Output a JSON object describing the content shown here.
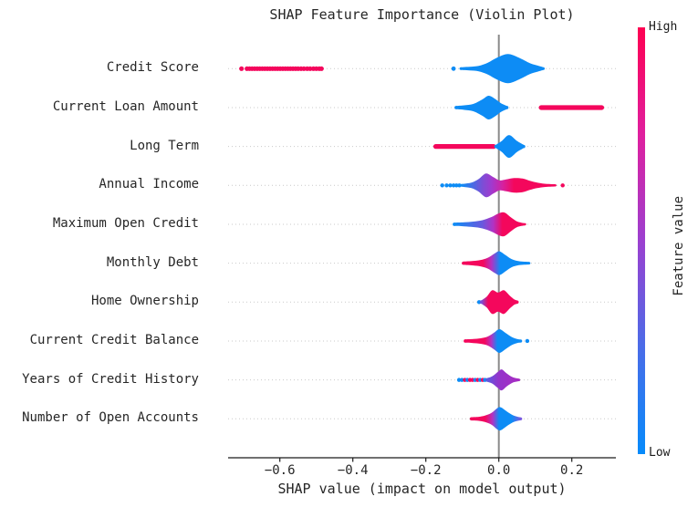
{
  "title": "SHAP Feature Importance (Violin Plot)",
  "xlabel": "SHAP value (impact on model output)",
  "colorbar": {
    "label": "Feature value",
    "high": "High",
    "low": "Low",
    "stops": [
      [
        0,
        "#fe0051"
      ],
      [
        0.25,
        "#e01f9e"
      ],
      [
        0.5,
        "#9c40d0"
      ],
      [
        0.75,
        "#4a6ce8"
      ],
      [
        1,
        "#068bfb"
      ]
    ]
  },
  "colors": {
    "blue": "#0d8cf5",
    "red": "#f4075c",
    "purple": "#a832c8",
    "zero_line": "#8a8a8a",
    "grid": "#c9c9c9",
    "axis": "#1a1a1a",
    "text": "#262626"
  },
  "axis": {
    "tick_values": [
      -0.6,
      -0.4,
      -0.2,
      0.0,
      0.2
    ],
    "tick_labels": [
      "−0.6",
      "−0.4",
      "−0.2",
      "0.0",
      "0.2"
    ],
    "xmin": -0.742,
    "xmax": 0.321
  },
  "chart_data": {
    "type": "violin",
    "orientation": "horizontal",
    "zero_line": 0.0,
    "features": [
      {
        "label": "Credit Score",
        "elements": [
          {
            "type": "dots",
            "color": "red",
            "r": 2.6,
            "xs": [
              -0.705,
              -0.69,
              -0.683,
              -0.676,
              -0.669,
              -0.662,
              -0.655,
              -0.648,
              -0.641,
              -0.634,
              -0.627,
              -0.62,
              -0.613,
              -0.606,
              -0.599,
              -0.592,
              -0.585,
              -0.578,
              -0.571,
              -0.564,
              -0.557,
              -0.55,
              -0.542,
              -0.534,
              -0.525,
              -0.517,
              -0.508,
              -0.5,
              -0.492,
              -0.486
            ]
          },
          {
            "type": "dots",
            "color": "blue",
            "r": 2.4,
            "xs": [
              -0.124
            ]
          },
          {
            "type": "violin",
            "fill": "blue",
            "profile": [
              [
                -0.104,
                1.5
              ],
              [
                -0.08,
                2
              ],
              [
                -0.055,
                3
              ],
              [
                -0.03,
                6.5
              ],
              [
                -0.005,
                12
              ],
              [
                0.025,
                16
              ],
              [
                0.055,
                12
              ],
              [
                0.085,
                6
              ],
              [
                0.105,
                3.5
              ],
              [
                0.122,
                1.5
              ]
            ]
          }
        ]
      },
      {
        "label": "Current Loan Amount",
        "elements": [
          {
            "type": "violin",
            "fill": "blue",
            "profile": [
              [
                -0.117,
                1.8
              ],
              [
                -0.095,
                2.5
              ],
              [
                -0.07,
                4
              ],
              [
                -0.045,
                9
              ],
              [
                -0.028,
                13
              ],
              [
                -0.01,
                9.5
              ],
              [
                0.005,
                5
              ],
              [
                0.022,
                1.8
              ]
            ]
          },
          {
            "type": "streak",
            "color": "red",
            "halfw": 2.6,
            "x0": 0.116,
            "x1": 0.282
          }
        ]
      },
      {
        "label": "Long Term",
        "elements": [
          {
            "type": "streak",
            "color": "red",
            "halfw": 2.6,
            "x0": -0.173,
            "x1": -0.014
          },
          {
            "type": "violin",
            "fill": "blue",
            "profile": [
              [
                -0.008,
                1.8
              ],
              [
                0.008,
                6
              ],
              [
                0.028,
                12.5
              ],
              [
                0.05,
                6
              ],
              [
                0.068,
                1.8
              ]
            ]
          }
        ]
      },
      {
        "label": "Annual Income",
        "elements": [
          {
            "type": "dots",
            "color": "blue",
            "r": 2.2,
            "xs": [
              -0.155,
              -0.143,
              -0.133,
              -0.124,
              -0.116,
              -0.108
            ]
          },
          {
            "type": "violin",
            "stops": [
              [
                0,
                "blue"
              ],
              [
                0.22,
                "#7a4fd6"
              ],
              [
                0.32,
                "#a13ace"
              ],
              [
                0.44,
                "#d6219f"
              ],
              [
                0.56,
                "red"
              ],
              [
                1,
                "red"
              ]
            ],
            "profile": [
              [
                -0.102,
                1.5
              ],
              [
                -0.075,
                3
              ],
              [
                -0.055,
                7
              ],
              [
                -0.035,
                13
              ],
              [
                -0.015,
                9
              ],
              [
                0.002,
                5.5
              ],
              [
                0.02,
                6.5
              ],
              [
                0.042,
                8
              ],
              [
                0.065,
                7.5
              ],
              [
                0.085,
                5
              ],
              [
                0.105,
                3
              ],
              [
                0.125,
                1.8
              ],
              [
                0.155,
                1.2
              ]
            ]
          },
          {
            "type": "dots",
            "color": "red",
            "r": 2.2,
            "xs": [
              0.175
            ]
          }
        ]
      },
      {
        "label": "Maximum Open Credit",
        "elements": [
          {
            "type": "violin",
            "stops": [
              [
                0,
                "blue"
              ],
              [
                0.4,
                "#6a58dd"
              ],
              [
                0.55,
                "#b133c4"
              ],
              [
                0.68,
                "red"
              ],
              [
                1,
                "red"
              ]
            ],
            "profile": [
              [
                -0.122,
                1.8
              ],
              [
                -0.095,
                2.2
              ],
              [
                -0.07,
                3
              ],
              [
                -0.045,
                4.5
              ],
              [
                -0.02,
                8
              ],
              [
                0.0,
                12
              ],
              [
                0.015,
                13
              ],
              [
                0.032,
                8
              ],
              [
                0.048,
                3.5
              ],
              [
                0.062,
                1.8
              ],
              [
                0.072,
                1.2
              ]
            ]
          }
        ]
      },
      {
        "label": "Monthly Debt",
        "elements": [
          {
            "type": "violin",
            "stops": [
              [
                0,
                "red"
              ],
              [
                0.3,
                "red"
              ],
              [
                0.43,
                "#b133c4"
              ],
              [
                0.56,
                "blue"
              ],
              [
                1,
                "blue"
              ]
            ],
            "profile": [
              [
                -0.097,
                1.8
              ],
              [
                -0.07,
                2.5
              ],
              [
                -0.05,
                3.5
              ],
              [
                -0.03,
                6
              ],
              [
                -0.01,
                11
              ],
              [
                0.002,
                13
              ],
              [
                0.018,
                9
              ],
              [
                0.035,
                4.5
              ],
              [
                0.055,
                2.2
              ],
              [
                0.083,
                1.4
              ]
            ]
          }
        ]
      },
      {
        "label": "Home Ownership",
        "elements": [
          {
            "type": "dots",
            "color": "blue",
            "r": 2.2,
            "xs": [
              -0.054
            ]
          },
          {
            "type": "violin",
            "stops": [
              [
                0,
                "#7a4fd6"
              ],
              [
                0.18,
                "red"
              ],
              [
                1,
                "red"
              ]
            ],
            "profile": [
              [
                -0.047,
                2
              ],
              [
                -0.033,
                6
              ],
              [
                -0.018,
                13
              ],
              [
                -0.002,
                10.5
              ],
              [
                0.014,
                13
              ],
              [
                0.03,
                7
              ],
              [
                0.042,
                3
              ],
              [
                0.05,
                1.8
              ]
            ]
          }
        ]
      },
      {
        "label": "Current Credit Balance",
        "elements": [
          {
            "type": "violin",
            "stops": [
              [
                0,
                "red"
              ],
              [
                0.35,
                "red"
              ],
              [
                0.47,
                "#b133c4"
              ],
              [
                0.58,
                "blue"
              ],
              [
                1,
                "blue"
              ]
            ],
            "profile": [
              [
                -0.092,
                1.8
              ],
              [
                -0.07,
                2.2
              ],
              [
                -0.05,
                3
              ],
              [
                -0.03,
                5
              ],
              [
                -0.012,
                9.5
              ],
              [
                0.002,
                13
              ],
              [
                0.018,
                9
              ],
              [
                0.035,
                4.5
              ],
              [
                0.05,
                2.2
              ],
              [
                0.06,
                1.6
              ]
            ]
          },
          {
            "type": "dots",
            "color": "blue",
            "r": 2.2,
            "xs": [
              0.078
            ]
          }
        ]
      },
      {
        "label": "Years of Credit History",
        "elements": [
          {
            "type": "dots",
            "r": 2.2,
            "xs": [
              -0.109,
              -0.101,
              -0.093,
              -0.086,
              -0.079,
              -0.072,
              -0.065,
              -0.058,
              -0.051,
              -0.044,
              -0.038
            ],
            "colors": [
              "blue",
              "blue",
              "red",
              "blue",
              "red",
              "red",
              "blue",
              "red",
              "blue",
              "red",
              "blue"
            ]
          },
          {
            "type": "violin",
            "stops": [
              [
                0,
                "#5b5ae0"
              ],
              [
                0.35,
                "#9334cb"
              ],
              [
                1,
                "#a72cc2"
              ]
            ],
            "profile": [
              [
                -0.032,
                2
              ],
              [
                -0.018,
                4
              ],
              [
                -0.002,
                9
              ],
              [
                0.008,
                11.5
              ],
              [
                0.022,
                7
              ],
              [
                0.038,
                3
              ],
              [
                0.055,
                1.4
              ]
            ]
          }
        ]
      },
      {
        "label": "Number of Open Accounts",
        "elements": [
          {
            "type": "violin",
            "stops": [
              [
                0,
                "red"
              ],
              [
                0.28,
                "red"
              ],
              [
                0.43,
                "#b133c4"
              ],
              [
                0.56,
                "blue"
              ],
              [
                0.82,
                "blue"
              ],
              [
                1,
                "#7b5ae0"
              ]
            ],
            "profile": [
              [
                -0.075,
                1.8
              ],
              [
                -0.055,
                2.2
              ],
              [
                -0.038,
                3.5
              ],
              [
                -0.02,
                6.5
              ],
              [
                -0.003,
                12
              ],
              [
                0.006,
                12.5
              ],
              [
                0.022,
                8
              ],
              [
                0.038,
                4
              ],
              [
                0.052,
                2.2
              ],
              [
                0.06,
                1.6
              ]
            ]
          }
        ]
      }
    ]
  }
}
